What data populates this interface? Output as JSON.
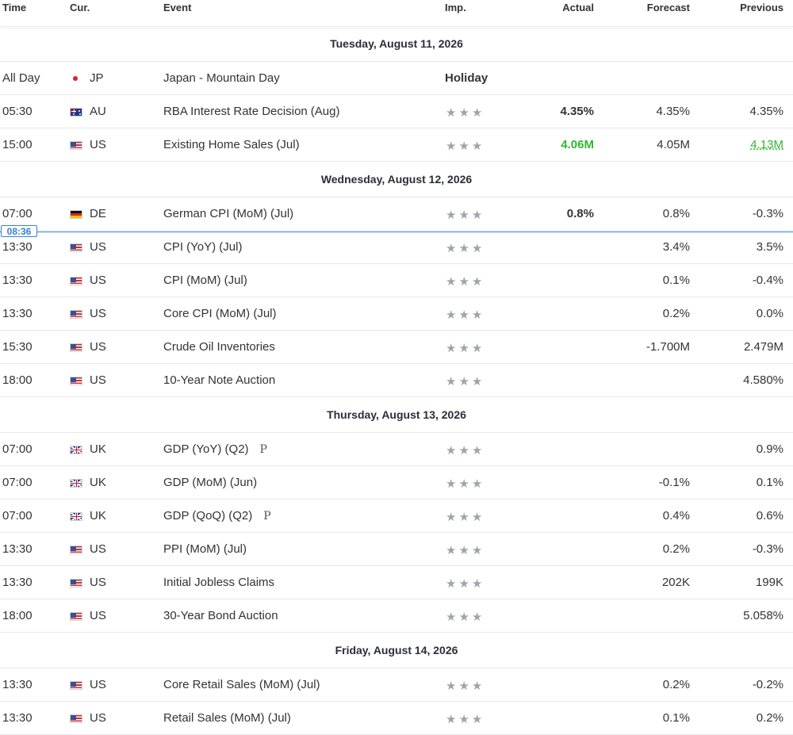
{
  "columns": {
    "time": "Time",
    "currency": "Cur.",
    "event": "Event",
    "importance": "Imp.",
    "actual": "Actual",
    "forecast": "Forecast",
    "previous": "Previous"
  },
  "current_time": "08:36",
  "importance_glyph": "★★★",
  "colors": {
    "accent_blue": "#3a7fd6",
    "better_green": "#2eb82e",
    "star_grey": "#a0a3a8"
  },
  "days": [
    {
      "date": "Tuesday, August 11, 2026",
      "events": [
        {
          "time": "All Day",
          "flag": "jp-dot",
          "currency": "JP",
          "event": "Japan - Mountain Day",
          "holiday": "Holiday"
        },
        {
          "time": "05:30",
          "flag": "au-flag-icon",
          "currency": "AU",
          "event": "RBA Interest Rate Decision",
          "period": "(Aug)",
          "actual": "4.35%",
          "forecast": "4.35%",
          "previous": "4.35%"
        },
        {
          "time": "15:00",
          "flag": "us-flag-icon",
          "currency": "US",
          "event": "Existing Home Sales",
          "period": "(Jul)",
          "actual": "4.06M",
          "forecast": "4.05M",
          "previous": "4.13M"
        }
      ]
    },
    {
      "date": "Wednesday, August 12, 2026",
      "events": [
        {
          "time": "07:00",
          "flag": "de-flag-icon",
          "currency": "DE",
          "event": "German CPI (MoM) (Jul)",
          "actual": "0.8%",
          "forecast": "0.8%",
          "previous": "-0.3%"
        },
        {
          "time": "13:30",
          "flag": "us-flag-icon",
          "currency": "US",
          "event": "CPI (YoY) (Jul)",
          "forecast": "3.4%",
          "previous": "3.5%"
        },
        {
          "time": "13:30",
          "flag": "us-flag-icon",
          "currency": "US",
          "event": "CPI (MoM) (Jul)",
          "forecast": "0.1%",
          "previous": "-0.4%"
        },
        {
          "time": "13:30",
          "flag": "us-flag-icon",
          "currency": "US",
          "event": "Core CPI (MoM) (Jul)",
          "forecast": "0.2%",
          "previous": "0.0%"
        },
        {
          "time": "15:30",
          "flag": "us-flag-icon",
          "currency": "US",
          "event": "Crude Oil Inventories",
          "forecast": "-1.700M",
          "previous": "2.479M"
        },
        {
          "time": "18:00",
          "flag": "us-flag-icon",
          "currency": "US",
          "event": "10-Year Note Auction",
          "previous": "4.580%"
        }
      ]
    },
    {
      "date": "Thursday, August 13, 2026",
      "events": [
        {
          "time": "07:00",
          "flag": "uk-flag-icon",
          "currency": "UK",
          "event": "GDP (YoY) (Q2)",
          "prelim": "P",
          "previous": "0.9%"
        },
        {
          "time": "07:00",
          "flag": "uk-flag-icon",
          "currency": "UK",
          "event": "GDP (MoM) (Jun)",
          "forecast": "-0.1%",
          "previous": "0.1%"
        },
        {
          "time": "07:00",
          "flag": "uk-flag-icon",
          "currency": "UK",
          "event": "GDP (QoQ) (Q2)",
          "prelim": "P",
          "forecast": "0.4%",
          "previous": "0.6%"
        },
        {
          "time": "13:30",
          "flag": "us-flag-icon",
          "currency": "US",
          "event": "PPI (MoM) (Jul)",
          "forecast": "0.2%",
          "previous": "-0.3%"
        },
        {
          "time": "13:30",
          "flag": "us-flag-icon",
          "currency": "US",
          "event": "Initial Jobless Claims",
          "forecast": "202K",
          "previous": "199K"
        },
        {
          "time": "18:00",
          "flag": "us-flag-icon",
          "currency": "US",
          "event": "30-Year Bond Auction",
          "previous": "5.058%"
        }
      ]
    },
    {
      "date": "Friday, August 14, 2026",
      "events": [
        {
          "time": "13:30",
          "flag": "us-flag-icon",
          "currency": "US",
          "event": "Core Retail Sales (MoM) (Jul)",
          "forecast": "0.2%",
          "previous": "-0.2%"
        },
        {
          "time": "13:30",
          "flag": "us-flag-icon",
          "currency": "US",
          "event": "Retail Sales (MoM) (Jul)",
          "forecast": "0.1%",
          "previous": "0.2%"
        }
      ]
    }
  ]
}
